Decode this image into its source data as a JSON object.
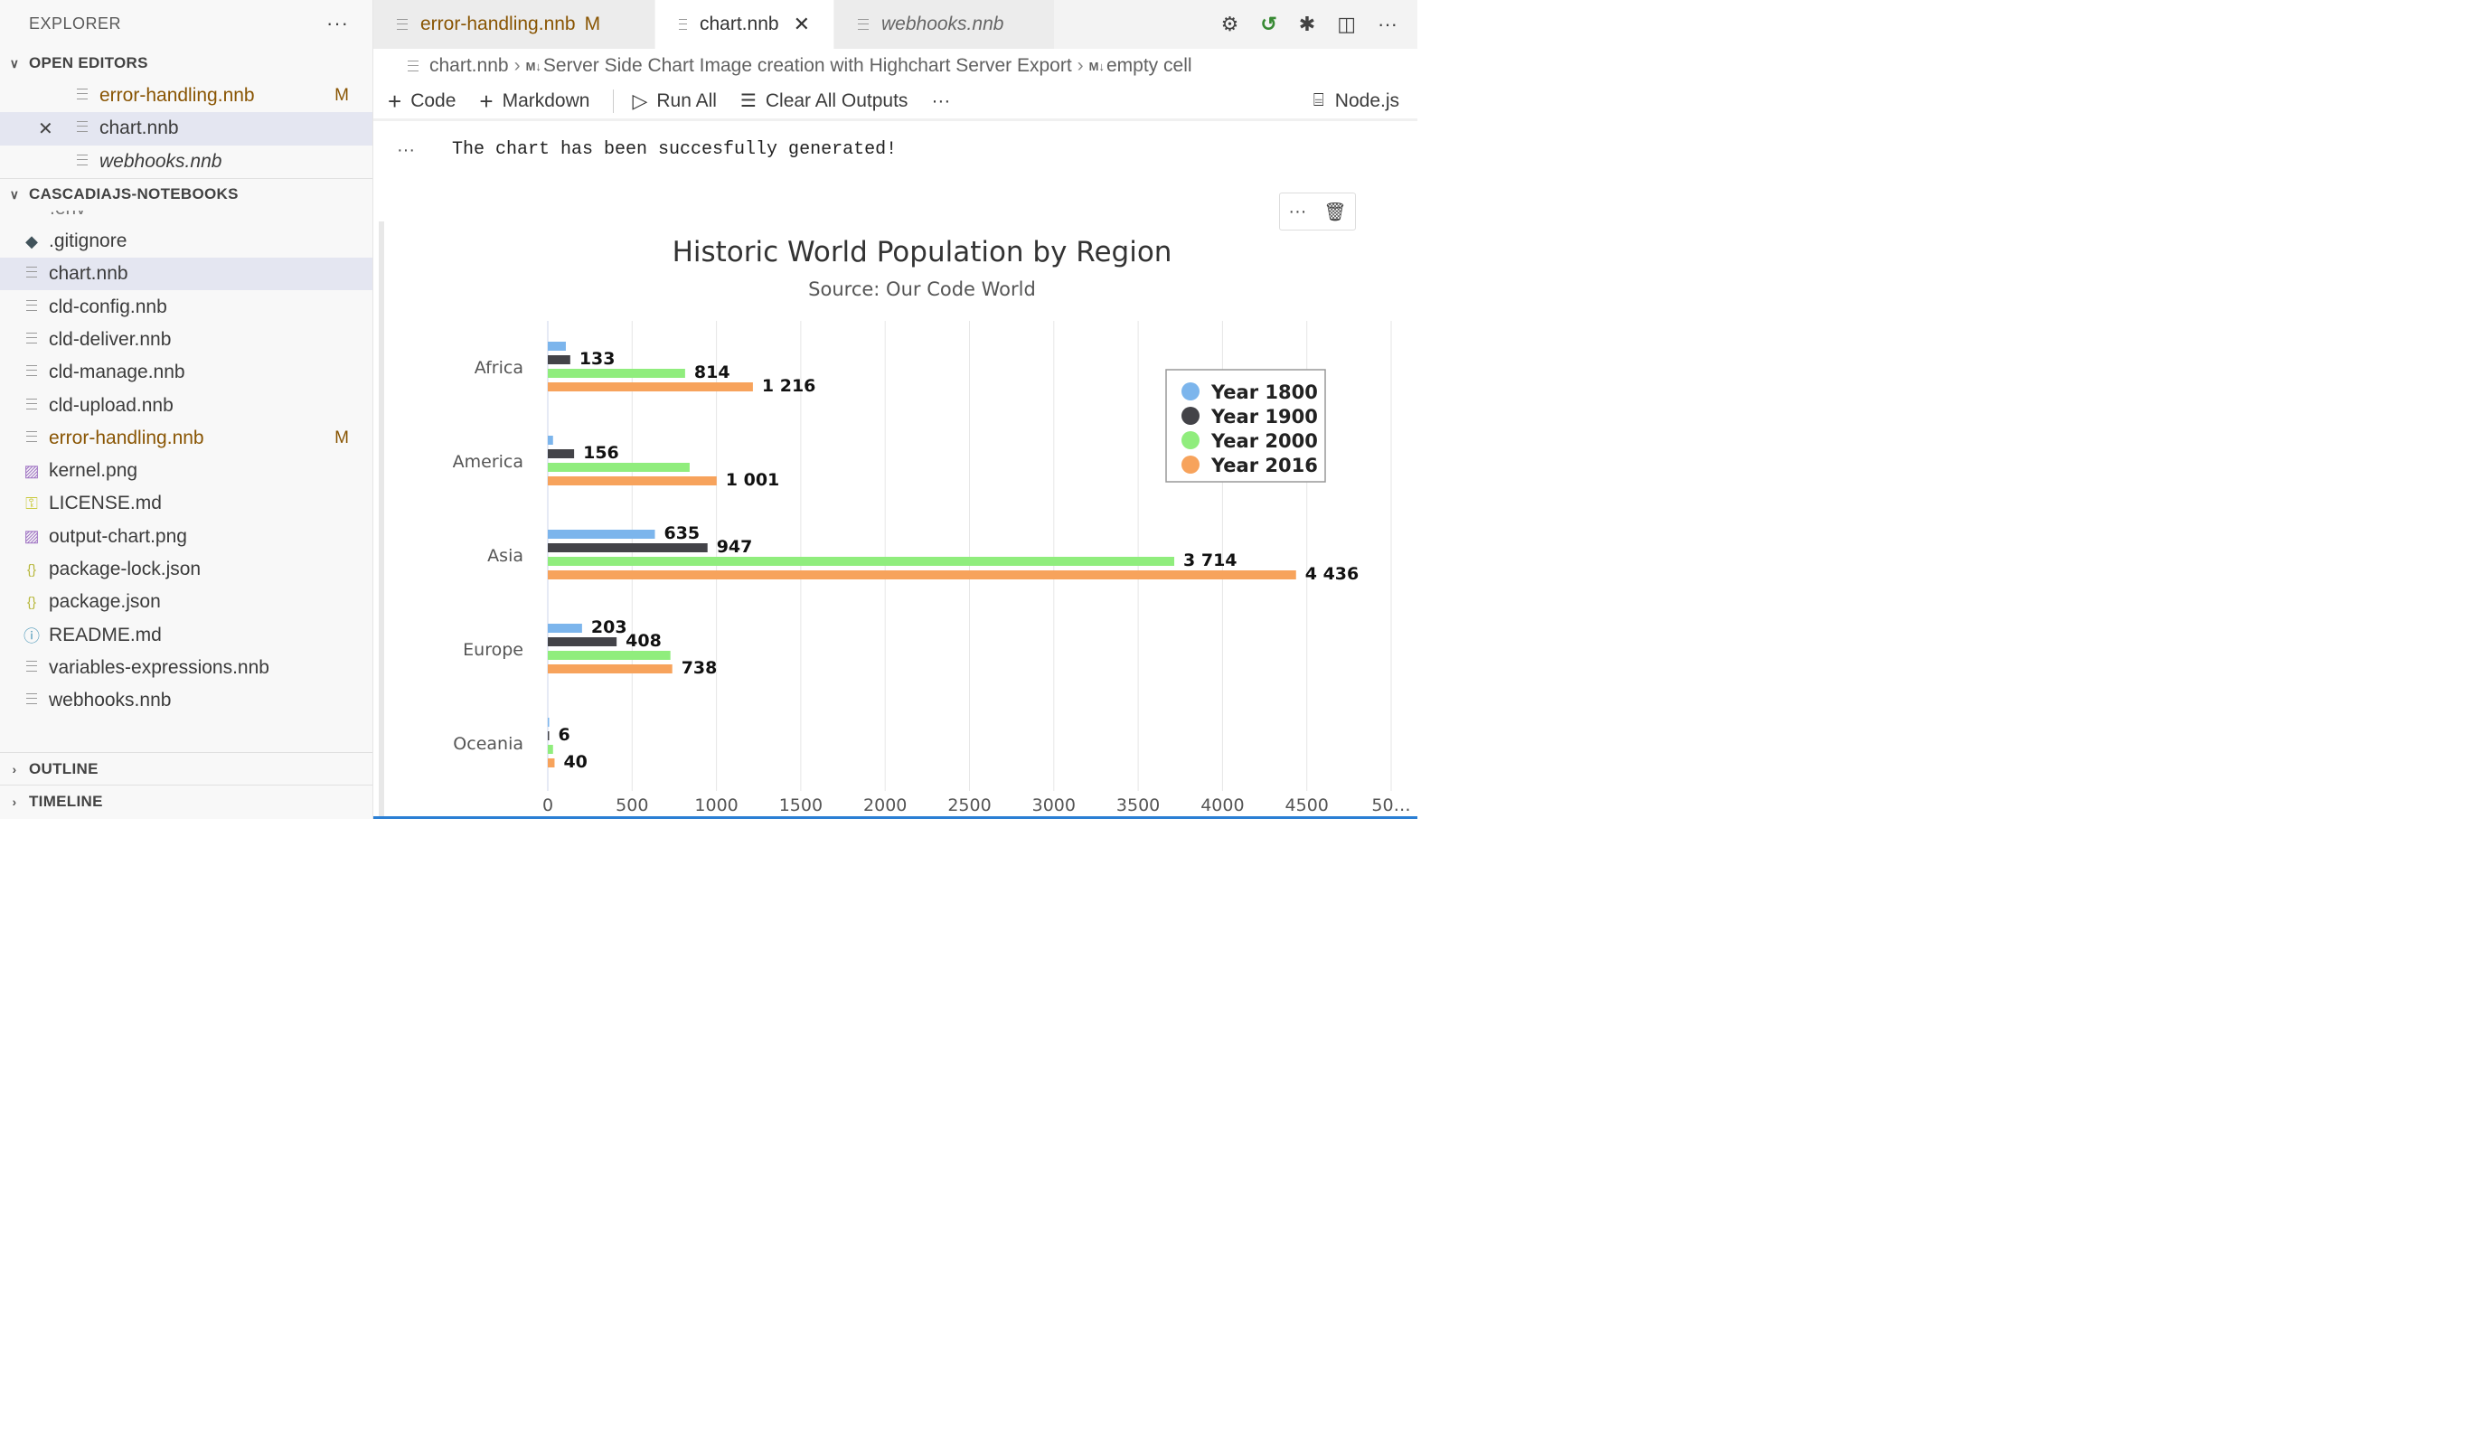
{
  "explorer": {
    "title": "EXPLORER",
    "more": "···",
    "open_editors": {
      "label": "OPEN EDITORS",
      "items": [
        {
          "name": "error-handling.nnb",
          "badge": "M"
        },
        {
          "name": "chart.nnb",
          "badge": ""
        },
        {
          "name": "webhooks.nnb",
          "badge": ""
        }
      ]
    },
    "workspace": {
      "label": "CASCADIAJS-NOTEBOOKS",
      "partial_item": ".env",
      "items": [
        {
          "name": ".gitignore",
          "icon": "git-diamond-icon",
          "badge": ""
        },
        {
          "name": "chart.nnb",
          "icon": "notebook-lines-icon",
          "badge": ""
        },
        {
          "name": "cld-config.nnb",
          "icon": "notebook-lines-icon",
          "badge": ""
        },
        {
          "name": "cld-deliver.nnb",
          "icon": "notebook-lines-icon",
          "badge": ""
        },
        {
          "name": "cld-manage.nnb",
          "icon": "notebook-lines-icon",
          "badge": ""
        },
        {
          "name": "cld-upload.nnb",
          "icon": "notebook-lines-icon",
          "badge": ""
        },
        {
          "name": "error-handling.nnb",
          "icon": "notebook-lines-icon",
          "badge": "M"
        },
        {
          "name": "kernel.png",
          "icon": "image-icon",
          "badge": ""
        },
        {
          "name": "LICENSE.md",
          "icon": "license-key-icon",
          "badge": ""
        },
        {
          "name": "output-chart.png",
          "icon": "image-icon",
          "badge": ""
        },
        {
          "name": "package-lock.json",
          "icon": "json-braces-icon",
          "badge": ""
        },
        {
          "name": "package.json",
          "icon": "json-braces-icon",
          "badge": ""
        },
        {
          "name": "README.md",
          "icon": "info-circle-icon",
          "badge": ""
        },
        {
          "name": "variables-expressions.nnb",
          "icon": "notebook-lines-icon",
          "badge": ""
        },
        {
          "name": "webhooks.nnb",
          "icon": "notebook-lines-icon",
          "badge": ""
        }
      ]
    },
    "outline_label": "OUTLINE",
    "timeline_label": "TIMELINE"
  },
  "tabs": [
    {
      "label": "error-handling.nnb",
      "modified": "M"
    },
    {
      "label": "chart.nnb",
      "close": "✕"
    },
    {
      "label": "webhooks.nnb"
    }
  ],
  "breadcrumb": {
    "file": "chart.nnb",
    "md_marker": "M↓",
    "section": "Server Side Chart Image creation with Highchart Server Export",
    "cell": "empty cell"
  },
  "toolbar": {
    "code": "Code",
    "markdown": "Markdown",
    "run_all": "Run All",
    "clear_outputs": "Clear All Outputs",
    "more": "···",
    "kernel": "Node.js"
  },
  "output": {
    "dots": "···",
    "message": "The chart has been succesfully generated!",
    "cell_more": "···"
  },
  "colors": {
    "modified": "#895503",
    "accent": "#2b7fd4",
    "series_1800": "#7cb5ec",
    "series_1900": "#434348",
    "series_2000": "#90ed7d",
    "series_2016": "#f7a35c"
  },
  "chart_data": {
    "type": "bar",
    "orientation": "horizontal",
    "title": "Historic World Population by Region",
    "subtitle": "Source: Our Code World",
    "categories": [
      "Africa",
      "America",
      "Asia",
      "Europe",
      "Oceania"
    ],
    "series": [
      {
        "name": "Year 1800",
        "values": [
          107,
          31,
          635,
          203,
          2
        ],
        "labels": [
          "",
          "",
          "635",
          "203",
          ""
        ]
      },
      {
        "name": "Year 1900",
        "values": [
          133,
          156,
          947,
          408,
          6
        ],
        "labels": [
          "133",
          "156",
          "947",
          "408",
          "6"
        ]
      },
      {
        "name": "Year 2000",
        "values": [
          814,
          841,
          3714,
          727,
          31
        ],
        "labels": [
          "814",
          "",
          "3 714",
          "",
          ""
        ]
      },
      {
        "name": "Year 2016",
        "values": [
          1216,
          1001,
          4436,
          738,
          40
        ],
        "labels": [
          "1 216",
          "1 001",
          "4 436",
          "738",
          "40"
        ]
      }
    ],
    "x_ticks": [
      "0",
      "500",
      "1000",
      "1500",
      "2000",
      "2500",
      "3000",
      "3500",
      "4000",
      "4500",
      "50…"
    ],
    "xlim": [
      0,
      5000
    ],
    "grid": true,
    "legend_position": "top-right"
  }
}
